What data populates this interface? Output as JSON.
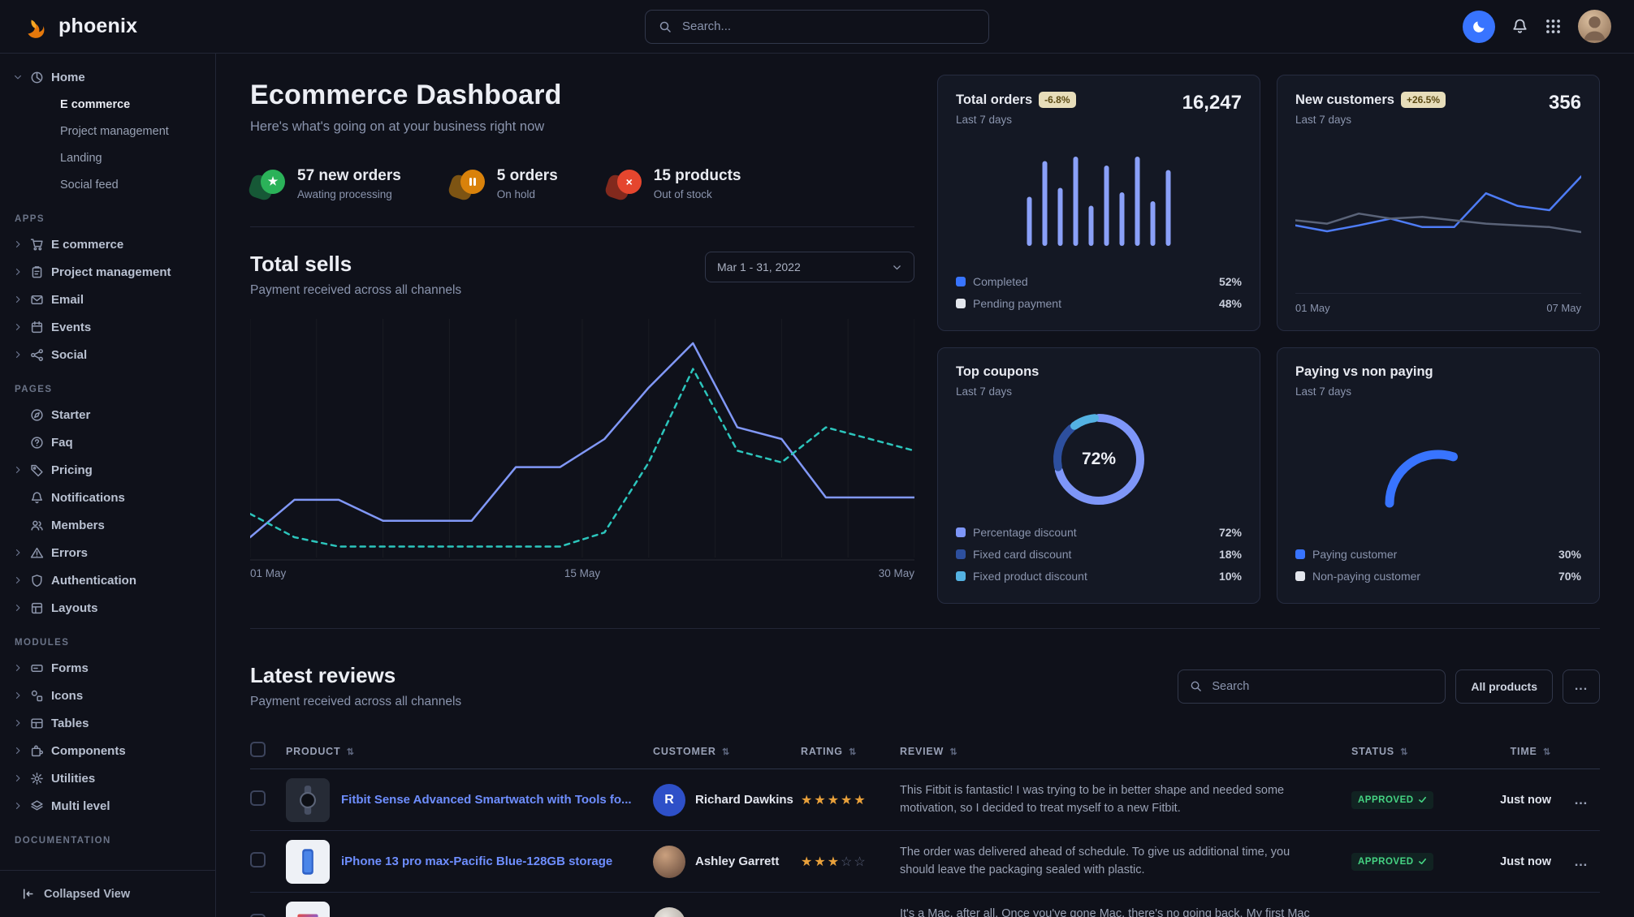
{
  "navbar": {
    "brand": "phoenix",
    "search_placeholder": "Search...",
    "icons": [
      "moon-toggle-icon",
      "notifications-bell-icon",
      "apps-grid-icon",
      "user-avatar"
    ]
  },
  "sidebar": {
    "home": {
      "label": "Home",
      "icon": "pie",
      "expanded": true,
      "children": [
        {
          "label": "E commerce",
          "active": true
        },
        {
          "label": "Project management",
          "active": false
        },
        {
          "label": "Landing",
          "active": false
        },
        {
          "label": "Social feed",
          "active": false
        }
      ]
    },
    "sections": [
      {
        "title": "APPS",
        "items": [
          {
            "label": "E commerce",
            "icon": "cart",
            "chevron": true
          },
          {
            "label": "Project management",
            "icon": "clipboard",
            "chevron": true
          },
          {
            "label": "Email",
            "icon": "mail",
            "chevron": true
          },
          {
            "label": "Events",
            "icon": "calendar",
            "chevron": true
          },
          {
            "label": "Social",
            "icon": "share",
            "chevron": true
          }
        ]
      },
      {
        "title": "PAGES",
        "items": [
          {
            "label": "Starter",
            "icon": "compass",
            "chevron": false
          },
          {
            "label": "Faq",
            "icon": "question",
            "chevron": false
          },
          {
            "label": "Pricing",
            "icon": "tag",
            "chevron": true
          },
          {
            "label": "Notifications",
            "icon": "bell",
            "chevron": false
          },
          {
            "label": "Members",
            "icon": "users",
            "chevron": false
          },
          {
            "label": "Errors",
            "icon": "alert",
            "chevron": true
          },
          {
            "label": "Authentication",
            "icon": "shield",
            "chevron": true
          },
          {
            "label": "Layouts",
            "icon": "layout",
            "chevron": true
          }
        ]
      },
      {
        "title": "MODULES",
        "items": [
          {
            "label": "Forms",
            "icon": "form",
            "chevron": true
          },
          {
            "label": "Icons",
            "icon": "shapes",
            "chevron": true
          },
          {
            "label": "Tables",
            "icon": "table",
            "chevron": true
          },
          {
            "label": "Components",
            "icon": "puzzle",
            "chevron": true
          },
          {
            "label": "Utilities",
            "icon": "gear",
            "chevron": true
          },
          {
            "label": "Multi level",
            "icon": "layers",
            "chevron": true
          }
        ]
      },
      {
        "title": "DOCUMENTATION",
        "items": []
      }
    ],
    "footer": {
      "label": "Collapsed View"
    }
  },
  "header": {
    "title": "Ecommerce Dashboard",
    "subtitle": "Here's what's going on at your business right now"
  },
  "stats": [
    {
      "value": "57 new orders",
      "caption": "Awating processing",
      "icon": "star",
      "color": "#2bb259",
      "blob": "#17603a"
    },
    {
      "value": "5 orders",
      "caption": "On hold",
      "icon": "pause",
      "color": "#d9820b",
      "blob": "#8a5c13"
    },
    {
      "value": "15 products",
      "caption": "Out of stock",
      "icon": "x",
      "color": "#e5462e",
      "blob": "#8f2c1e"
    }
  ],
  "total_sells": {
    "title": "Total sells",
    "subtitle": "Payment received across all channels",
    "date_range": "Mar 1 - 31, 2022"
  },
  "cards": {
    "total_orders": {
      "title": "Total orders",
      "badge": "-6.8%",
      "period": "Last 7 days",
      "value": "16,247"
    },
    "new_customers": {
      "title": "New customers",
      "badge": "+26.5%",
      "period": "Last 7 days",
      "value": "356"
    },
    "top_coupons": {
      "title": "Top coupons",
      "period": "Last 7 days"
    },
    "paying": {
      "title": "Paying vs non paying",
      "period": "Last 7 days"
    }
  },
  "reviews": {
    "title": "Latest reviews",
    "subtitle": "Payment received across all channels",
    "search_placeholder": "Search",
    "filter_button": "All products",
    "more_button": "...",
    "columns": [
      "PRODUCT",
      "CUSTOMER",
      "RATING",
      "REVIEW",
      "STATUS",
      "TIME"
    ],
    "rows": [
      {
        "product": "Fitbit Sense Advanced Smartwatch with Tools fo...",
        "thumb": "watch",
        "customer": "Richard Dawkins",
        "avatar": {
          "kind": "initial",
          "text": "R",
          "bg": "#2e50c8"
        },
        "rating": 5,
        "review": "This Fitbit is fantastic! I was trying to be in better shape and needed some motivation, so I decided to treat myself to a new Fitbit.",
        "status": "APPROVED",
        "time": "Just now"
      },
      {
        "product": "iPhone 13 pro max-Pacific Blue-128GB storage",
        "thumb": "phone",
        "customer": "Ashley Garrett",
        "avatar": {
          "kind": "photo",
          "g1": "#caa07e",
          "g2": "#5f4437"
        },
        "rating": 3,
        "review": "The order was delivered ahead of schedule. To give us additional time, you should leave the packaging sealed with plastic.",
        "status": "APPROVED",
        "time": "Just now"
      },
      {
        "product": "",
        "thumb": "laptop",
        "customer": "",
        "avatar": {
          "kind": "photo",
          "g1": "#e8e4de",
          "g2": "#9d968e"
        },
        "rating": 0,
        "review": "It's a Mac, after all. Once you've gone Mac, there's no going back. My first Mac lasted...",
        "status": "",
        "time": ""
      }
    ]
  },
  "chart_data": [
    {
      "id": "total-sells",
      "type": "line",
      "title": "Total sells",
      "x_ticks": [
        "01 May",
        "15 May",
        "30 May"
      ],
      "ylim": [
        0,
        100
      ],
      "grid": "vertical",
      "series": [
        {
          "name": "current",
          "style": "solid",
          "color": "#8198f7",
          "values": [
            8,
            24,
            24,
            15,
            15,
            15,
            38,
            38,
            50,
            72,
            91,
            55,
            50,
            25,
            25,
            25
          ]
        },
        {
          "name": "previous",
          "style": "dashed",
          "color": "#2cc5bc",
          "values": [
            18,
            8,
            4,
            4,
            4,
            4,
            4,
            4,
            10,
            40,
            80,
            45,
            40,
            55,
            50,
            45
          ]
        }
      ]
    },
    {
      "id": "total-orders",
      "type": "bar",
      "color": "#8aa0f8",
      "ylim": [
        0,
        100
      ],
      "values": [
        55,
        95,
        65,
        100,
        45,
        90,
        60,
        100,
        50,
        85
      ],
      "legend": [
        {
          "label": "Completed",
          "value": "52%",
          "color": "#3874ff"
        },
        {
          "label": "Pending payment",
          "value": "48%",
          "color": "#e3e6ed"
        }
      ]
    },
    {
      "id": "new-customers",
      "type": "line",
      "x_ticks": [
        "01 May",
        "07 May"
      ],
      "ylim": [
        0,
        100
      ],
      "series": [
        {
          "name": "current",
          "style": "solid",
          "color": "#4e7cf6",
          "values": [
            32,
            25,
            32,
            40,
            30,
            30,
            70,
            55,
            50,
            90
          ]
        },
        {
          "name": "previous",
          "style": "solid",
          "color": "#5a6378",
          "values": [
            38,
            34,
            46,
            40,
            42,
            38,
            34,
            32,
            30,
            24
          ]
        }
      ]
    },
    {
      "id": "top-coupons",
      "type": "donut",
      "center_label": "72%",
      "slices": [
        {
          "label": "Percentage discount",
          "value": 72,
          "value_label": "72%",
          "color": "#7e96f8"
        },
        {
          "label": "Fixed card discount",
          "value": 18,
          "value_label": "18%",
          "color": "#2d4f9e"
        },
        {
          "label": "Fixed product discount",
          "value": 10,
          "value_label": "10%",
          "color": "#54b2e2"
        }
      ]
    },
    {
      "id": "paying-gauge",
      "type": "gauge",
      "value": 30,
      "color": "#3874ff",
      "start_angle": 180,
      "legend": [
        {
          "label": "Paying customer",
          "value": "30%",
          "color": "#3874ff"
        },
        {
          "label": "Non-paying customer",
          "value": "70%",
          "color": "#e3e6ed"
        }
      ]
    }
  ]
}
